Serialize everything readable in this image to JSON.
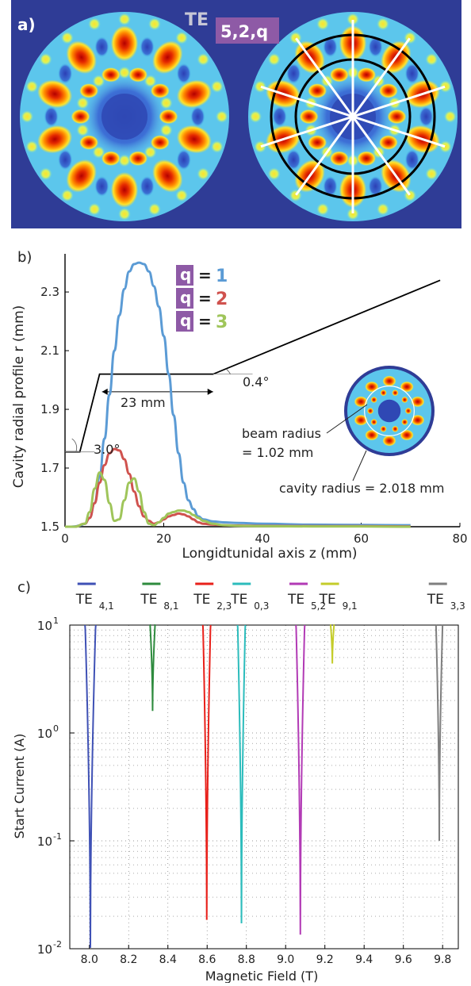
{
  "panel_a": {
    "label": "a)",
    "mode_prefix": "TE",
    "mode_subscript": "5,2,q",
    "colors": {
      "background": "#2f3c96",
      "hot": "#d40000",
      "warm": "#ffe22a",
      "cool": "#4fc3ee",
      "cold": "#3a56c4"
    }
  },
  "panel_b": {
    "label": "b)",
    "legend": [
      {
        "key": "q",
        "eq": "=",
        "val": "1",
        "color": "#5b9bd5"
      },
      {
        "key": "q",
        "eq": "=",
        "val": "2",
        "color": "#d0524e"
      },
      {
        "key": "q",
        "eq": "=",
        "val": "3",
        "color": "#9fc55a"
      }
    ],
    "legend_key_color": "#8e5aa6",
    "annotations": {
      "taper_in_angle": "3.0°",
      "taper_out_angle": "0.4°",
      "length": "23 mm",
      "beam_radius_line1": "beam radius",
      "beam_radius_line2": "= 1.02 mm",
      "cavity_radius": "cavity radius = 2.018 mm"
    }
  },
  "panel_c": {
    "label": "c)"
  },
  "chart_data": [
    {
      "type": "line",
      "panel": "b",
      "xlabel": "Longidtunidal axis z (mm)",
      "ylabel": "Cavity radial profile r (mm)",
      "xlim": [
        0,
        80
      ],
      "ylim": [
        1.5,
        2.43
      ],
      "xticks": [
        "0",
        "20",
        "40",
        "60",
        "80"
      ],
      "yticks": [
        "1.5",
        "1.7",
        "1.9",
        "2.1",
        "2.3"
      ],
      "grid": false,
      "cavity_profile": {
        "x": [
          0,
          3,
          7,
          30,
          76
        ],
        "y": [
          1.755,
          1.755,
          2.02,
          2.02,
          2.34
        ],
        "color": "#000000"
      },
      "series": [
        {
          "name": "q = 1",
          "color": "#5b9bd5",
          "x": [
            0,
            1,
            2,
            3,
            4,
            5,
            6,
            7,
            8,
            9,
            10,
            11,
            12,
            13,
            14,
            15,
            16,
            17,
            18,
            19,
            20,
            21,
            22,
            23,
            24,
            25,
            26,
            27,
            28,
            30,
            32,
            35,
            40,
            50,
            60,
            70
          ],
          "y": [
            1.5,
            1.5,
            1.501,
            1.504,
            1.51,
            1.53,
            1.58,
            1.67,
            1.8,
            1.95,
            2.1,
            2.22,
            2.31,
            2.37,
            2.395,
            2.4,
            2.395,
            2.37,
            2.32,
            2.25,
            2.15,
            2.02,
            1.88,
            1.75,
            1.65,
            1.59,
            1.56,
            1.535,
            1.525,
            1.518,
            1.515,
            1.513,
            1.51,
            1.507,
            1.506,
            1.505
          ]
        },
        {
          "name": "q = 2",
          "color": "#d0524e",
          "x": [
            0,
            2,
            4,
            5,
            6,
            7,
            8,
            9,
            10,
            11,
            12,
            13,
            14,
            15,
            16,
            17,
            18,
            19,
            20,
            21,
            22,
            23,
            24,
            25,
            26,
            27,
            28,
            30,
            32,
            35,
            40,
            50,
            60,
            70
          ],
          "y": [
            1.5,
            1.5,
            1.51,
            1.53,
            1.58,
            1.65,
            1.71,
            1.75,
            1.765,
            1.76,
            1.73,
            1.68,
            1.62,
            1.57,
            1.535,
            1.52,
            1.51,
            1.515,
            1.525,
            1.535,
            1.54,
            1.545,
            1.542,
            1.535,
            1.525,
            1.515,
            1.51,
            1.507,
            1.505,
            1.504,
            1.503,
            1.502,
            1.502,
            1.501
          ]
        },
        {
          "name": "q = 3",
          "color": "#9fc55a",
          "x": [
            0,
            2,
            4,
            5,
            6,
            7,
            8,
            9,
            10,
            11,
            12,
            13,
            14,
            15,
            16,
            17,
            18,
            19,
            20,
            21,
            22,
            23,
            24,
            25,
            26,
            27,
            28,
            30,
            32,
            35,
            40,
            50,
            60,
            70
          ],
          "y": [
            1.5,
            1.5,
            1.51,
            1.55,
            1.63,
            1.685,
            1.66,
            1.58,
            1.52,
            1.525,
            1.59,
            1.65,
            1.665,
            1.62,
            1.55,
            1.51,
            1.505,
            1.515,
            1.53,
            1.545,
            1.55,
            1.555,
            1.555,
            1.55,
            1.54,
            1.53,
            1.52,
            1.51,
            1.505,
            1.503,
            1.502,
            1.501,
            1.501,
            1.5
          ]
        }
      ]
    },
    {
      "type": "line",
      "panel": "c",
      "xlabel": "Magnetic Field (T)",
      "ylabel": "Start Current (A)",
      "xlim": [
        7.9,
        9.88
      ],
      "ylim": [
        0.01,
        10
      ],
      "yscale": "log",
      "xticks": [
        "8.0",
        "8.2",
        "8.4",
        "8.6",
        "8.8",
        "9.0",
        "9.2",
        "9.4",
        "9.6",
        "9.8"
      ],
      "yticks": [
        {
          "base": "10",
          "exp": "1",
          "value": 10
        },
        {
          "base": "10",
          "exp": "0",
          "value": 1
        },
        {
          "base": "10",
          "exp": "-1",
          "value": 0.1
        },
        {
          "base": "10",
          "exp": "-2",
          "value": 0.01
        }
      ],
      "grid": true,
      "series": [
        {
          "name": "TE",
          "sub": "4,1",
          "color": "#3f51b5",
          "center": 8.005,
          "min": 0.0102,
          "width": 0.055,
          "label_x": 8.0
        },
        {
          "name": "TE",
          "sub": "8,1",
          "color": "#2e8b3e",
          "center": 8.322,
          "min": 1.6,
          "width": 0.028,
          "label_x": 8.33
        },
        {
          "name": "TE",
          "sub": "2,3",
          "color": "#e8201a",
          "center": 8.598,
          "min": 0.0185,
          "width": 0.04,
          "label_x": 8.6
        },
        {
          "name": "TE",
          "sub": "0,3",
          "color": "#2cbcbc",
          "center": 8.775,
          "min": 0.0172,
          "width": 0.04,
          "label_x": 8.79
        },
        {
          "name": "TE",
          "sub": "5,2",
          "color": "#b23ab5",
          "center": 9.075,
          "min": 0.0135,
          "width": 0.045,
          "label_x": 9.08
        },
        {
          "name": "TE",
          "sub": "9,1",
          "color": "#c4cc2a",
          "center": 9.238,
          "min": 4.4,
          "width": 0.022,
          "label_x": 9.24
        },
        {
          "name": "TE",
          "sub": "3,3",
          "color": "#7f7f7f",
          "center": 9.783,
          "min": 0.1,
          "width": 0.035,
          "label_x": 9.79
        }
      ]
    }
  ]
}
